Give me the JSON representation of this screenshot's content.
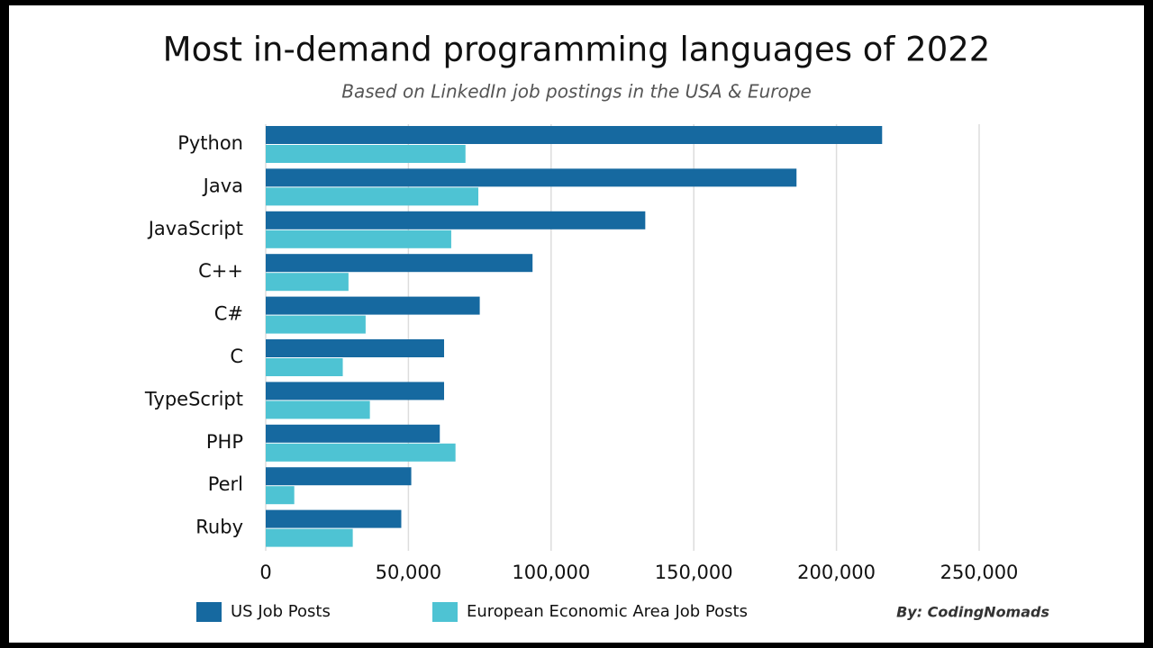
{
  "chart_data": {
    "type": "bar",
    "orientation": "horizontal",
    "title": "Most in-demand programming languages of 2022",
    "subtitle": "Based on LinkedIn job postings in the USA & Europe",
    "credit": "By: CodingNomads",
    "categories": [
      "Python",
      "Java",
      "JavaScript",
      "C++",
      "C#",
      "C",
      "TypeScript",
      "PHP",
      "Perl",
      "Ruby"
    ],
    "series": [
      {
        "name": "US Job Posts",
        "color": "#1669a0",
        "values": [
          216000,
          186000,
          133000,
          93500,
          75000,
          62500,
          62500,
          61000,
          51000,
          47500
        ]
      },
      {
        "name": "European Economic Area Job Posts",
        "color": "#4ec3d3",
        "values": [
          70000,
          74500,
          65000,
          29000,
          35000,
          27000,
          36500,
          66500,
          10000,
          30500
        ]
      }
    ],
    "xlim": [
      0,
      250000
    ],
    "xticks": [
      0,
      {
        "value": 50000,
        "label": "50,000"
      },
      {
        "value": 100000,
        "label": "100,000"
      },
      {
        "value": 150000,
        "label": "150,000"
      },
      {
        "value": 200000,
        "label": "200,000"
      },
      {
        "value": 250000,
        "label": "250,000"
      }
    ],
    "grid": true,
    "legend": "bottom"
  }
}
